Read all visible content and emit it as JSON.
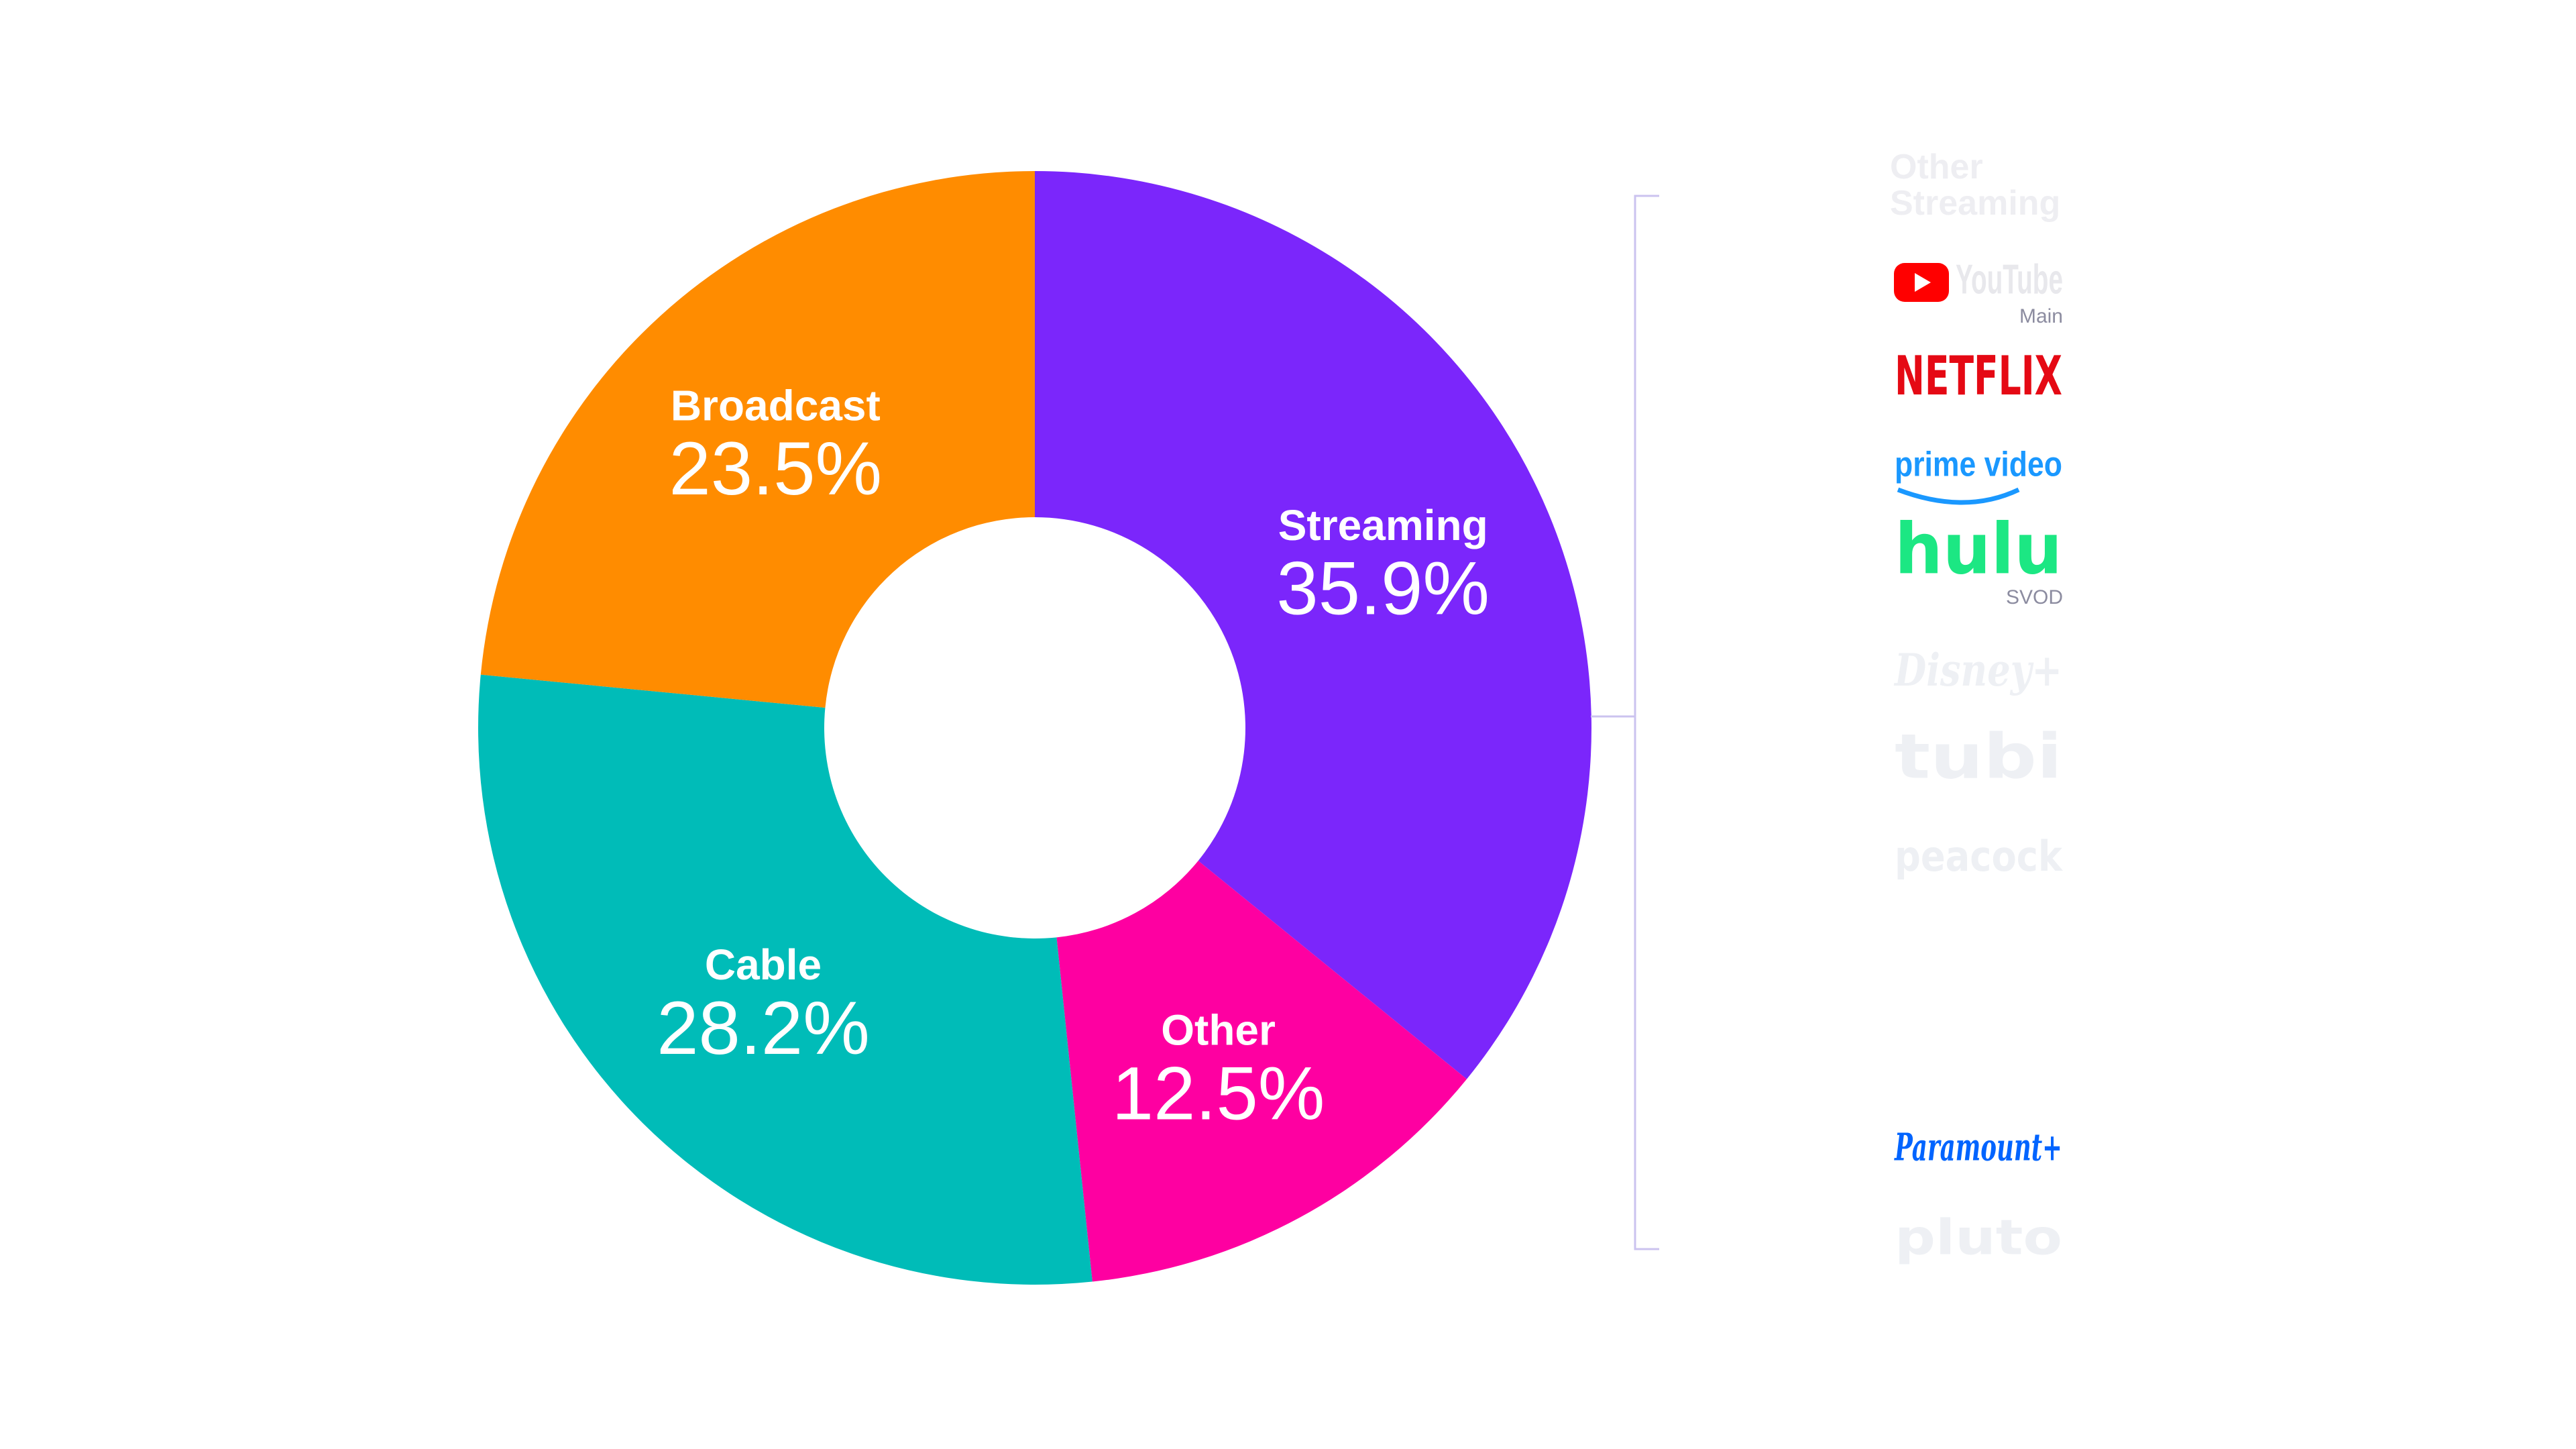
{
  "chart_data": {
    "type": "donut",
    "categories": [
      "Streaming",
      "Other",
      "Cable",
      "Broadcast"
    ],
    "values": [
      35.9,
      12.5,
      28.2,
      23.5
    ],
    "value_labels": [
      "35.9%",
      "12.5%",
      "28.2%",
      "23.5%"
    ],
    "colors": [
      "#7b26fb",
      "#fe00a1",
      "#00bcb8",
      "#ff8c00"
    ]
  },
  "side_panel": {
    "title": "Other Streaming",
    "title_color": "#eeeef2",
    "bracket_color": "#cbc3ef",
    "logos": [
      {
        "name": "YouTube",
        "note": "Main",
        "color": "#e8e8ec"
      },
      {
        "name": "NETFLIX",
        "color": "#e50914"
      },
      {
        "name": "prime video",
        "color": "#1a98ff"
      },
      {
        "name": "hulu",
        "note": "SVOD",
        "color": "#1ce783"
      },
      {
        "name": "Disney+",
        "color": "#eef0f4"
      },
      {
        "name": "tubi",
        "color": "#eef0f4"
      },
      {
        "name": "peacock",
        "color": "#eef0f4"
      },
      {
        "name": "Paramount+",
        "color": "#0064ff"
      },
      {
        "name": "pluto",
        "color": "#eef0f4"
      }
    ]
  }
}
